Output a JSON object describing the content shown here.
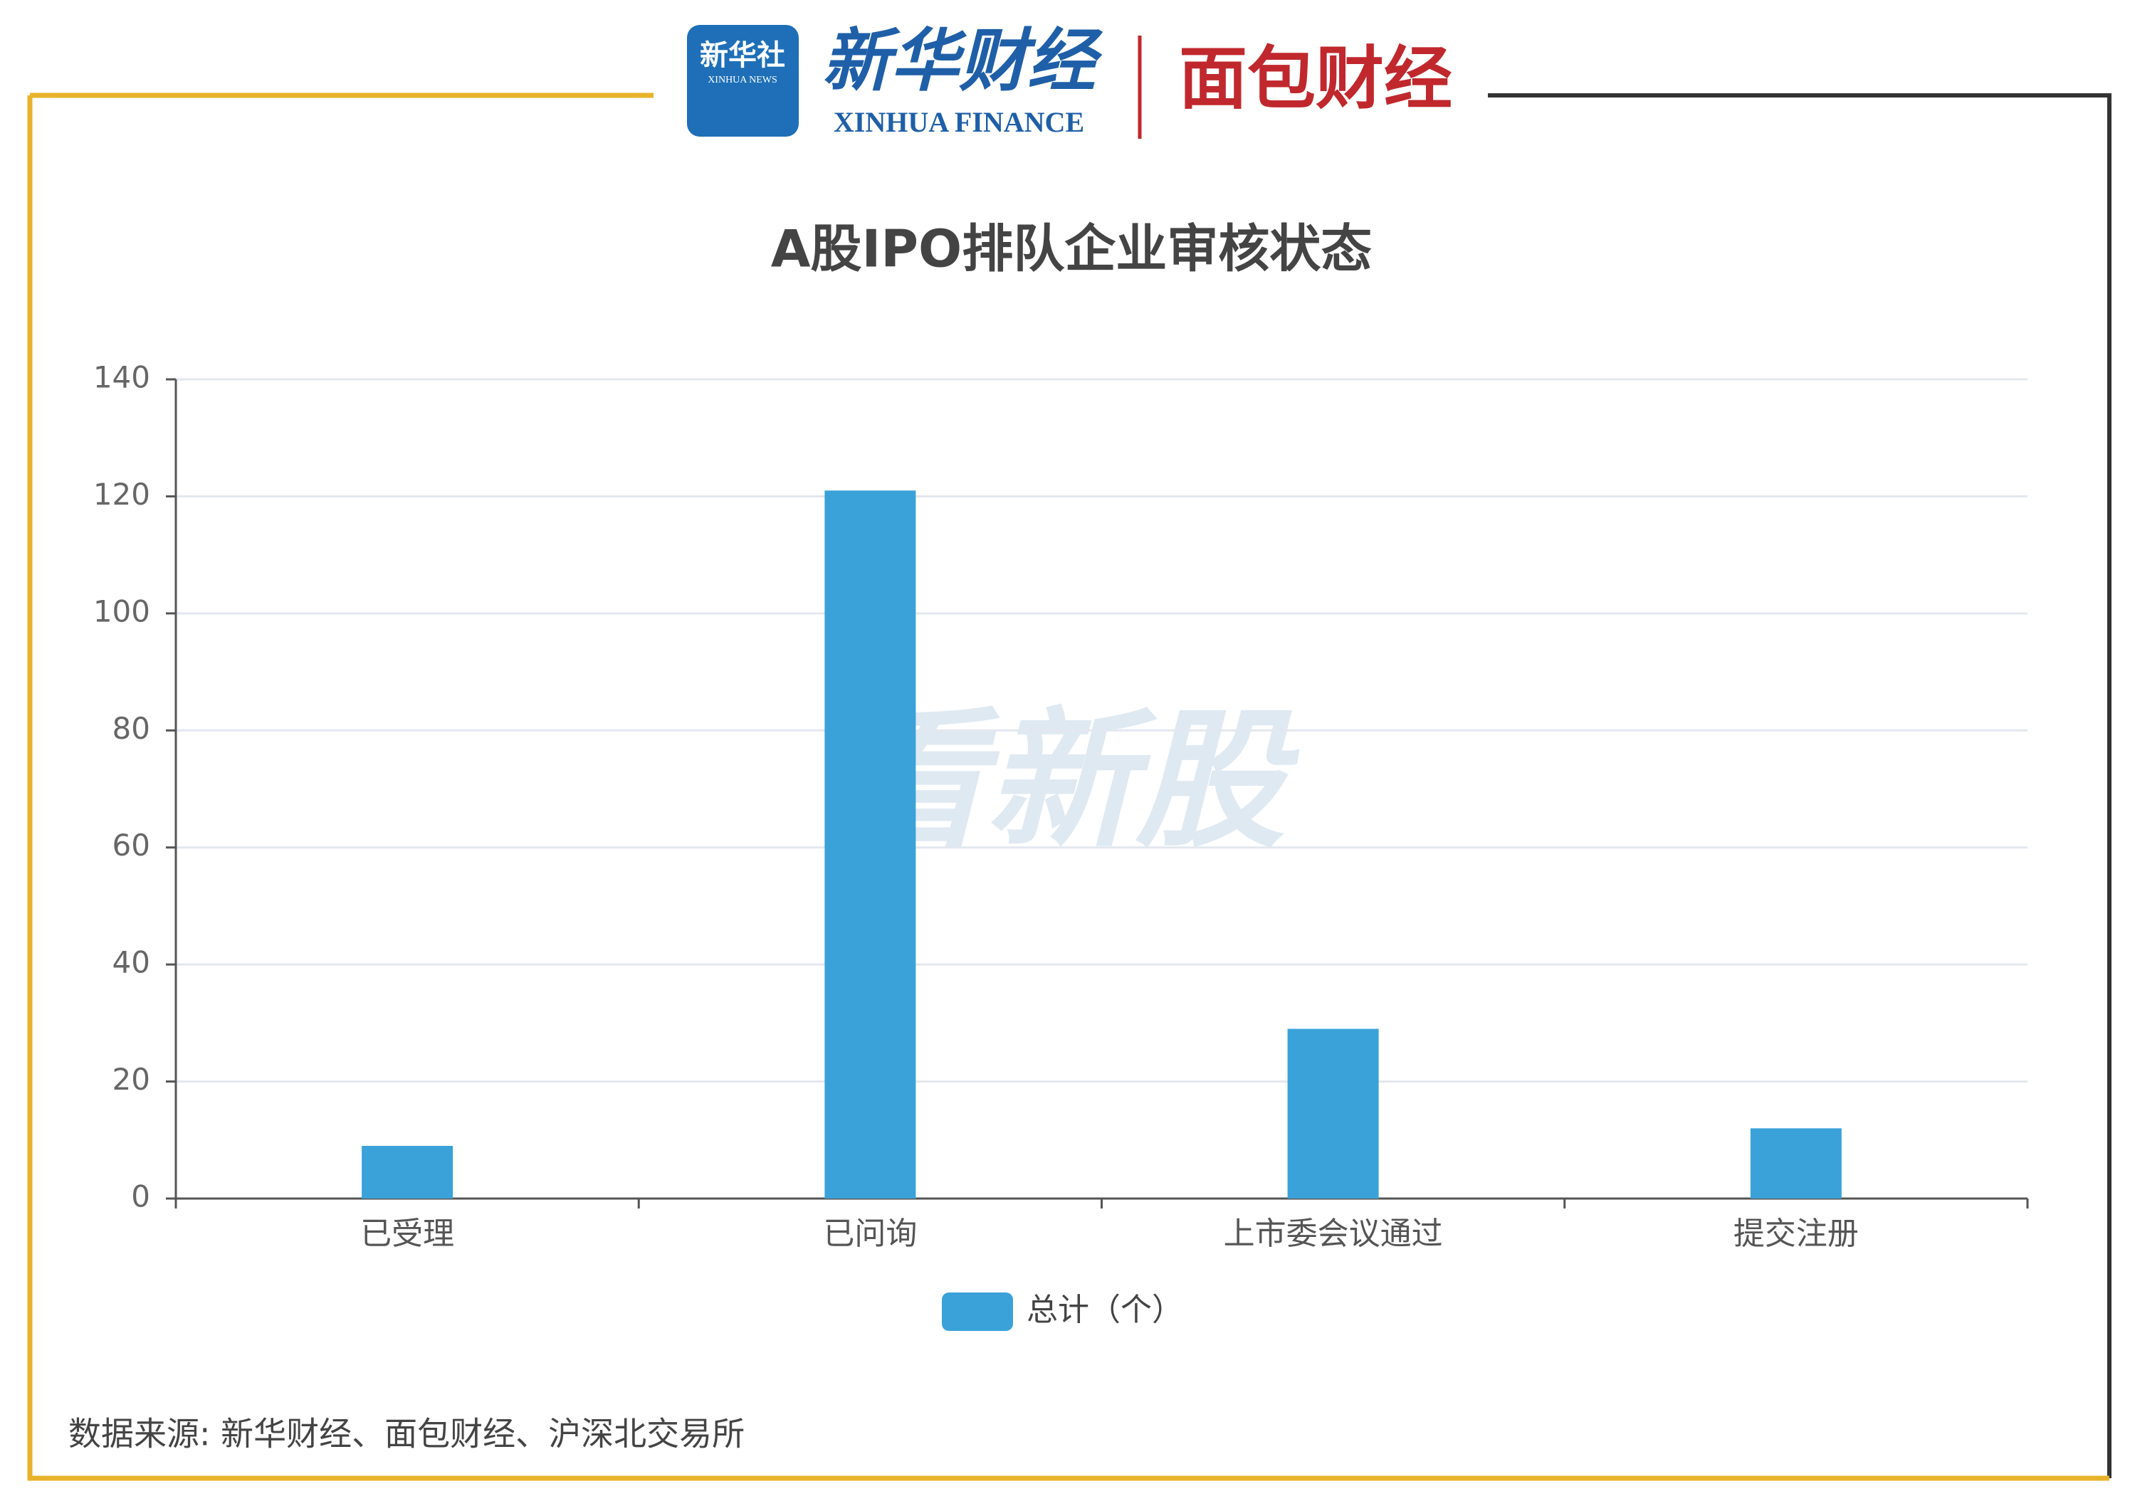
{
  "branding": {
    "xinhua_news_cn": "新华社",
    "xinhua_news_en": "XINHUA NEWS",
    "xinhua_finance_cn": "新华财经",
    "xinhua_finance_en": "XINHUA FINANCE",
    "mianbao": "面包财经",
    "watermark": "看新股"
  },
  "chart_data": {
    "type": "bar",
    "title": "A股IPO排队企业审核状态",
    "categories": [
      "已受理",
      "已问询",
      "上市委会议通过",
      "提交注册"
    ],
    "series": [
      {
        "name": "总计（个）",
        "color": "#3aa2d9",
        "values": [
          9,
          121,
          29,
          12
        ]
      }
    ],
    "ylim": [
      0,
      140
    ],
    "yticks": [
      0,
      20,
      40,
      60,
      80,
      100,
      120,
      140
    ],
    "grid": true,
    "legend": "bottom"
  },
  "footer": {
    "source": "数据来源: 新华财经、面包财经、沪深北交易所"
  }
}
